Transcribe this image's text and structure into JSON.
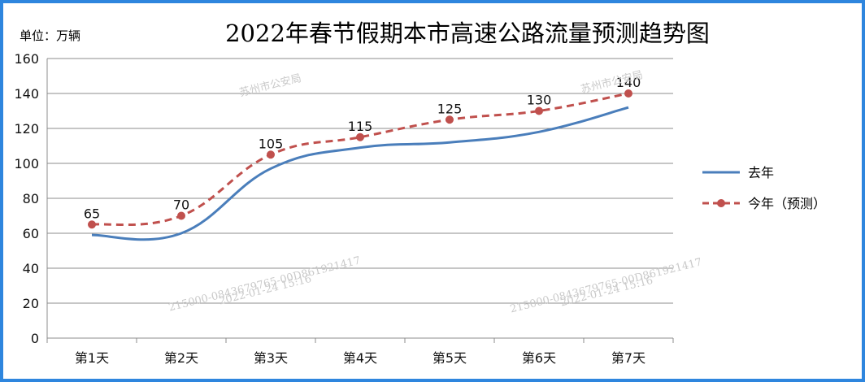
{
  "title": "2022年春节假期本市高速公路流量预测趋势图",
  "unit_label": "单位：万辆",
  "watermarks": {
    "agency": "苏州市公安局",
    "code": "215000-0843679765-00D861921417",
    "datetime": "2022-01-24  15:16"
  },
  "colors": {
    "frame": "#2e86de",
    "last_year": "#4a7ebb",
    "this_year": "#c0504d",
    "grid": "#8c8c8c"
  },
  "chart_data": {
    "type": "line",
    "title": "2022年春节假期本市高速公路流量预测趋势图",
    "ylabel": "单位：万辆",
    "xlabel": "",
    "categories": [
      "第1天",
      "第2天",
      "第3天",
      "第4天",
      "第5天",
      "第6天",
      "第7天"
    ],
    "ylim": [
      0,
      160
    ],
    "yticks": [
      0,
      20,
      40,
      60,
      80,
      100,
      120,
      140,
      160
    ],
    "grid": true,
    "legend_position": "right",
    "series": [
      {
        "name": "去年",
        "style": "solid",
        "color": "#4a7ebb",
        "values": [
          59,
          60,
          97,
          109,
          112,
          118,
          132
        ],
        "show_labels": false
      },
      {
        "name": "今年（预测）",
        "style": "dashed-with-markers",
        "color": "#c0504d",
        "values": [
          65,
          70,
          105,
          115,
          125,
          130,
          140
        ],
        "show_labels": true
      }
    ]
  }
}
